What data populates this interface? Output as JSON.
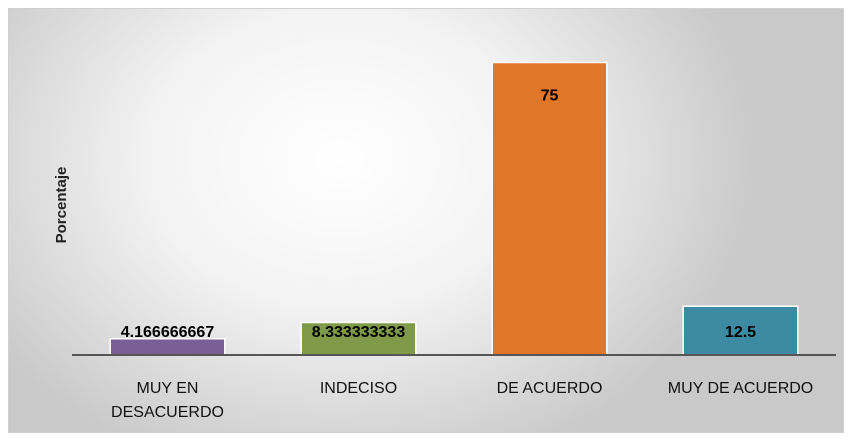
{
  "chart_data": {
    "type": "bar",
    "y_label": "Porcentaje",
    "categories": [
      "MUY EN DESACUERDO",
      "INDECISO",
      "DE ACUERDO",
      "MUY DE ACUERDO"
    ],
    "values": [
      4.166666667,
      8.333333333,
      75,
      12.5
    ],
    "colors": [
      "#7a5f95",
      "#7f9a48",
      "#e07628",
      "#3d8ba3"
    ],
    "ylim": [
      0,
      80
    ]
  }
}
